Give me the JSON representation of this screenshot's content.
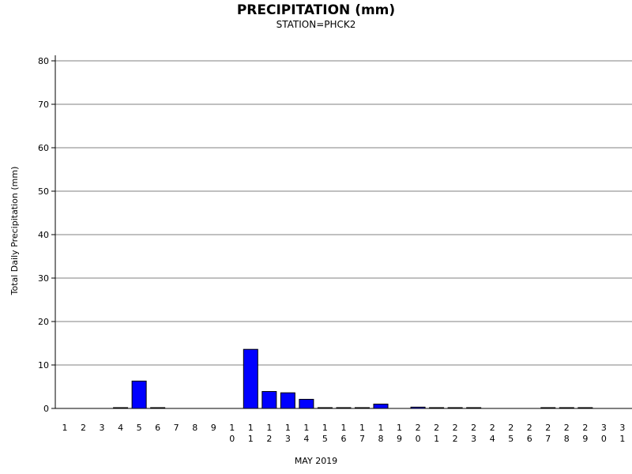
{
  "chart_data": {
    "type": "bar",
    "title": "PRECIPITATION (mm)",
    "subtitle": "STATION=PHCK2",
    "xlabel": "MAY 2019",
    "ylabel": "Total Daily Precipitation (mm)",
    "ylim": [
      0,
      80
    ],
    "yticks": [
      "0",
      "10",
      "20",
      "30",
      "40",
      "50",
      "60",
      "70",
      "80"
    ],
    "grid": true,
    "bar_color": "#0000ff",
    "categories": [
      "1",
      "2",
      "3",
      "4",
      "5",
      "6",
      "7",
      "8",
      "9",
      "10",
      "11",
      "12",
      "13",
      "14",
      "15",
      "16",
      "17",
      "18",
      "19",
      "20",
      "21",
      "22",
      "23",
      "24",
      "25",
      "26",
      "27",
      "28",
      "29",
      "30",
      "31"
    ],
    "values": [
      0,
      0,
      0,
      0.1,
      6.3,
      0.1,
      0,
      0,
      0,
      0,
      13.6,
      3.9,
      3.6,
      2.1,
      0.1,
      0.1,
      0.1,
      1.0,
      0,
      0.3,
      0.1,
      0.1,
      0.1,
      0,
      0,
      0,
      0.1,
      0.1,
      0.1,
      0,
      0
    ]
  }
}
